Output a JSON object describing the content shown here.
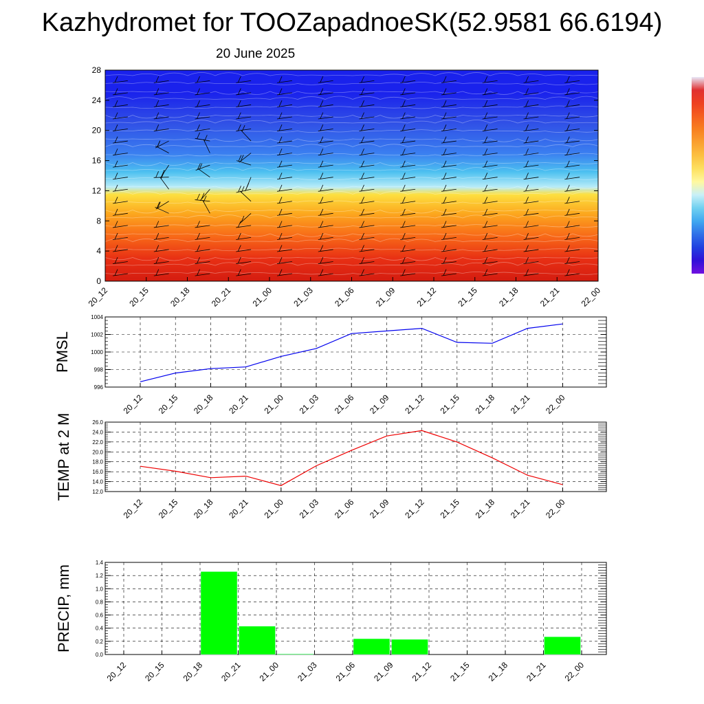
{
  "title": "Kazhydromet for TOOZapadnoeSK(52.9581 66.6194)",
  "subtitle": "20 June 2025",
  "colors": {
    "pmsl": "#0000ee",
    "temp": "#ee0000",
    "precip": "#00ff00"
  },
  "chart_data": [
    {
      "type": "heatmap",
      "title": "",
      "y_ticks": [
        "0",
        "4",
        "8",
        "12",
        "16",
        "20",
        "24",
        "28"
      ],
      "ylim": [
        0,
        28
      ],
      "x_ticks": [
        "20_12",
        "20_15",
        "20_18",
        "20_21",
        "21_00",
        "21_03",
        "21_06",
        "21_09",
        "21_12",
        "21_15",
        "21_18",
        "21_21",
        "22_00"
      ],
      "colormap": "blue-cyan-yellow-red",
      "bands": [
        {
          "y": 0,
          "color": "#d41c10"
        },
        {
          "y": 3,
          "color": "#e83014"
        },
        {
          "y": 6,
          "color": "#f86a18"
        },
        {
          "y": 9,
          "color": "#fca81e"
        },
        {
          "y": 11.5,
          "color": "#fde040"
        },
        {
          "y": 12.5,
          "color": "#b8ecf8"
        },
        {
          "y": 14.5,
          "color": "#4cc0f0"
        },
        {
          "y": 17,
          "color": "#3a7ef0"
        },
        {
          "y": 21,
          "color": "#3050e6"
        },
        {
          "y": 25,
          "color": "#1a22ec"
        },
        {
          "y": 28,
          "color": "#1a22ec"
        }
      ],
      "colorbar": [
        "#e8e8f8",
        "#e03030",
        "#ee4020",
        "#f56020",
        "#f88020",
        "#faa030",
        "#fcc040",
        "#fde060",
        "#fff8a0",
        "#c8f0f8",
        "#70d0f0",
        "#40a8f0",
        "#3070e8",
        "#2040e0",
        "#3010d8",
        "#7010e0"
      ]
    },
    {
      "type": "line",
      "ylabel": "PMSL",
      "x": [
        "20_12",
        "20_15",
        "20_18",
        "20_21",
        "21_00",
        "21_03",
        "21_06",
        "21_09",
        "21_12",
        "21_15",
        "21_18",
        "21_21",
        "22_00"
      ],
      "ylim": [
        996,
        1004
      ],
      "y_ticks": [
        "996",
        "998",
        "1000",
        "1002",
        "1004"
      ],
      "grid": true,
      "series": [
        {
          "values": [
            996.6,
            997.6,
            998.1,
            998.3,
            999.5,
            1000.4,
            1002.1,
            1002.4,
            1002.7,
            1001.1,
            1001.0,
            1002.7,
            1003.2
          ]
        }
      ]
    },
    {
      "type": "line",
      "ylabel": "TEMP at 2 M",
      "x": [
        "20_12",
        "20_15",
        "20_18",
        "20_21",
        "21_00",
        "21_03",
        "21_06",
        "21_09",
        "21_12",
        "21_15",
        "21_18",
        "21_21",
        "22_00"
      ],
      "ylim": [
        12,
        26
      ],
      "y_ticks": [
        "12.0",
        "14.0",
        "16.0",
        "18.0",
        "20.0",
        "22.0",
        "24.0",
        "26.0"
      ],
      "grid": true,
      "series": [
        {
          "values": [
            17.1,
            16.1,
            14.8,
            15.1,
            13.2,
            17.2,
            20.3,
            23.2,
            24.3,
            22.0,
            18.8,
            15.3,
            13.4
          ]
        }
      ]
    },
    {
      "type": "bar",
      "ylabel": "PRECIP, mm",
      "categories": [
        "20_12",
        "20_15",
        "20_18",
        "20_21",
        "21_00",
        "21_03",
        "21_06",
        "21_09",
        "21_12",
        "21_15",
        "21_18",
        "21_21",
        "22_00"
      ],
      "values": [
        0,
        0,
        1.26,
        0.43,
        0.01,
        0,
        0.24,
        0.23,
        0,
        0,
        0,
        0.27,
        0
      ],
      "ylim": [
        0,
        1.4
      ],
      "y_ticks": [
        "0.0",
        "0.2",
        "0.4",
        "0.6",
        "0.8",
        "1.0",
        "1.2",
        "1.4"
      ],
      "grid": true
    }
  ]
}
